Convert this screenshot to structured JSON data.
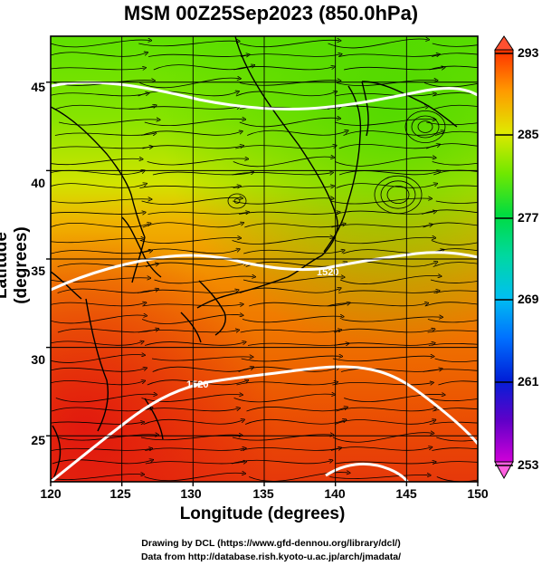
{
  "title": "MSM 00Z25Sep2023 (850.0hPa)",
  "axes": {
    "xlabel": "Longitude (degrees)",
    "ylabel": "Latitude  (degrees)",
    "xticks": [
      "120",
      "125",
      "130",
      "135",
      "140",
      "145",
      "150"
    ],
    "yticks": [
      "25",
      "30",
      "35",
      "40",
      "45"
    ]
  },
  "colorbar": {
    "labels": [
      "293",
      "285",
      "277",
      "269",
      "261",
      "253"
    ],
    "min": 253,
    "max": 293
  },
  "contours": [
    "1520",
    "1520"
  ],
  "credits": {
    "line1": "Drawing by DCL (https://www.gfd-dennou.org/library/dcl/)",
    "line2": "Data from http://database.rish.kyoto-u.ac.jp/arch/jmadata/"
  },
  "chart_data": {
    "type": "heatmap",
    "title": "MSM 00Z25Sep2023 (850.0hPa)",
    "xlabel": "Longitude (degrees)",
    "ylabel": "Latitude  (degrees)",
    "xlim": [
      120,
      150
    ],
    "ylim": [
      22.4,
      47.6
    ],
    "colorbar_range": [
      253,
      293
    ],
    "colors": {
      "green": "#6ee000",
      "yellow": "#d8e800",
      "orange": "#f08000",
      "red": "#e8300a"
    }
  }
}
